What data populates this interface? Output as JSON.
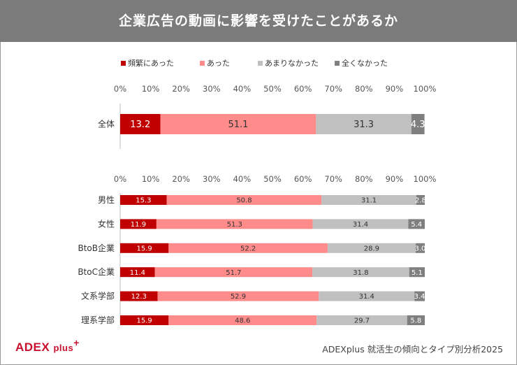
{
  "header": {
    "title": "企業広告の動画に影響を受けたことがあるか"
  },
  "legend": [
    {
      "label": "頻繁にあった",
      "color": "#c00000"
    },
    {
      "label": "あった",
      "color": "#ff8b8b"
    },
    {
      "label": "あまりなかった",
      "color": "#c0c0c0"
    },
    {
      "label": "全くなかった",
      "color": "#7f7f7f"
    }
  ],
  "chart_data": [
    {
      "type": "bar",
      "orientation": "horizontal",
      "stacked": true,
      "xlim": [
        0,
        100
      ],
      "x_ticks": [
        "0%",
        "10%",
        "20%",
        "30%",
        "40%",
        "50%",
        "60%",
        "70%",
        "80%",
        "90%",
        "100%"
      ],
      "categories": [
        "全体"
      ],
      "series": [
        {
          "name": "頻繁にあった",
          "values": [
            13.2
          ]
        },
        {
          "name": "あった",
          "values": [
            51.1
          ]
        },
        {
          "name": "あまりなかった",
          "values": [
            31.3
          ]
        },
        {
          "name": "全くなかった",
          "values": [
            4.3
          ]
        }
      ],
      "data_labels": [
        [
          "13.2",
          "51.1",
          "31.3",
          "4.3"
        ]
      ]
    },
    {
      "type": "bar",
      "orientation": "horizontal",
      "stacked": true,
      "xlim": [
        0,
        100
      ],
      "x_ticks": [
        "0%",
        "10%",
        "20%",
        "30%",
        "40%",
        "50%",
        "60%",
        "70%",
        "80%",
        "90%",
        "100%"
      ],
      "categories": [
        "男性",
        "女性",
        "BtoB企業",
        "BtoC企業",
        "文系学部",
        "理系学部"
      ],
      "series": [
        {
          "name": "頻繁にあった",
          "values": [
            15.3,
            11.9,
            15.9,
            11.4,
            12.3,
            15.9
          ]
        },
        {
          "name": "あった",
          "values": [
            50.8,
            51.3,
            52.2,
            51.7,
            52.9,
            48.6
          ]
        },
        {
          "name": "あまりなかった",
          "values": [
            31.1,
            31.4,
            28.9,
            31.8,
            31.4,
            29.7
          ]
        },
        {
          "name": "全くなかった",
          "values": [
            2.8,
            5.4,
            3.0,
            5.1,
            3.4,
            5.8
          ]
        }
      ],
      "data_labels": [
        [
          "15.3",
          "50.8",
          "31.1",
          "2.8"
        ],
        [
          "11.9",
          "51.3",
          "31.4",
          "5.4"
        ],
        [
          "15.9",
          "52.2",
          "28.9",
          "3.0"
        ],
        [
          "11.4",
          "51.7",
          "31.8",
          "5.1"
        ],
        [
          "12.3",
          "52.9",
          "31.4",
          "3.4"
        ],
        [
          "15.9",
          "48.6",
          "29.7",
          "5.8"
        ]
      ]
    }
  ],
  "footer": {
    "logo_main": "ADEX",
    "logo_plus": "plus",
    "logo_sup": "+",
    "note": "ADEXplus 就活生の傾向とタイプ別分析2025"
  }
}
